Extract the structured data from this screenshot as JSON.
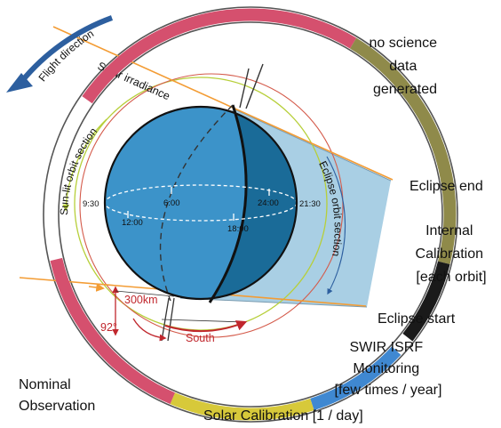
{
  "flight_direction": "Flight direction",
  "solar_irradiance": "Solar irradiance",
  "sunlit_section": "Sun-lit orbit section",
  "eclipse_section": "Eclipse orbit section",
  "times": {
    "t930": "9:30",
    "t600": "6:00",
    "t1200": "12:00",
    "t2400": "24:00",
    "t1800": "18:00",
    "t2130": "21:30"
  },
  "segments": {
    "no_science": [
      "no science",
      "data",
      "generated"
    ],
    "eclipse_end": "Eclipse end",
    "internal_cal": [
      "Internal",
      "Calibration",
      "[each orbit]"
    ],
    "eclipse_start": "Eclipse start",
    "swir": [
      "SWIR ISRF",
      "Monitoring",
      "[few times / year]"
    ],
    "solar_cal": "Solar Calibration [1 / day]",
    "nominal": [
      "Nominal",
      "Observation"
    ]
  },
  "annotations": {
    "altitude": "300km",
    "angle": "92°",
    "south": "South"
  },
  "colors": {
    "nominal": "#d5506e",
    "no_science": "#8f8a4a",
    "internal_cal": "#1a1a1a",
    "swir": "#3f88d1",
    "solar_cal": "#d7c93a",
    "earth_day": "#3c93c9",
    "earth_night": "#1a6b98",
    "shadow": "#a9cfe4",
    "sun_ray": "#f39c34",
    "annot": "#c0272d",
    "arrow": "#2d5f9f"
  }
}
